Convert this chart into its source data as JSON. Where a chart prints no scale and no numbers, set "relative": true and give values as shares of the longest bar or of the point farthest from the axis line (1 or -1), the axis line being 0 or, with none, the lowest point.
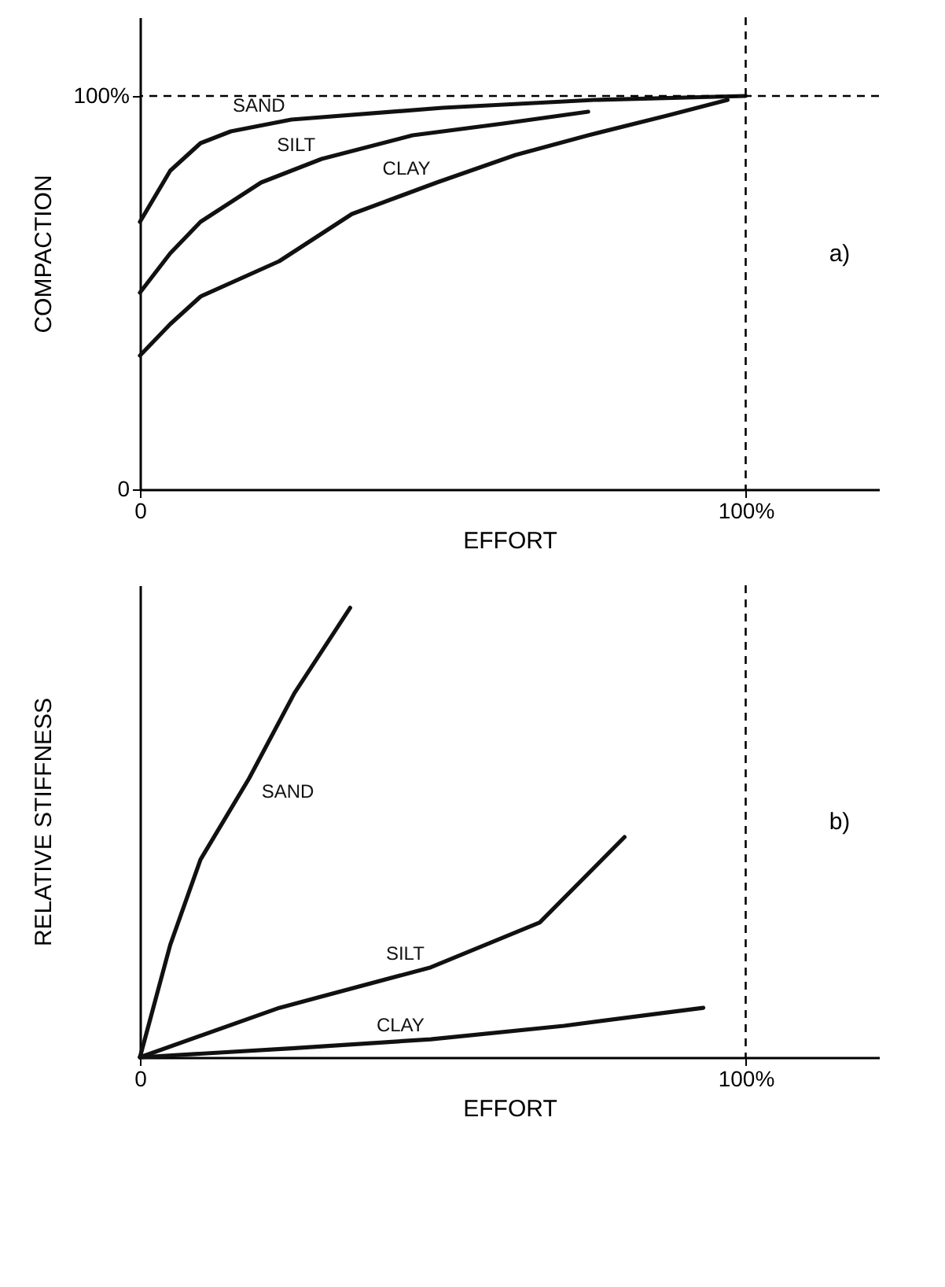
{
  "chart_data": [
    {
      "type": "line",
      "xlabel": "EFFORT",
      "ylabel": "COMPACTION",
      "xlim": [
        0,
        122
      ],
      "ylim": [
        0,
        120
      ],
      "xticks": [
        0,
        {
          "value": 100,
          "label": "100%"
        }
      ],
      "yticks": [
        0,
        {
          "value": 100,
          "label": "100%"
        }
      ],
      "grid": false,
      "legend": false,
      "marker": "none",
      "line_style": "solid",
      "series": [
        {
          "name": "SAND",
          "color": "#111111",
          "x": [
            0,
            5,
            10,
            15,
            25,
            50,
            75,
            100
          ],
          "values": [
            68,
            81,
            88,
            91,
            94,
            97,
            99,
            100
          ]
        },
        {
          "name": "SILT",
          "color": "#111111",
          "x": [
            0,
            5,
            10,
            20,
            30,
            45,
            60,
            74
          ],
          "values": [
            50,
            60,
            68,
            78,
            84,
            90,
            93,
            96
          ]
        },
        {
          "name": "CLAY",
          "color": "#111111",
          "x": [
            0,
            5,
            10,
            23,
            35,
            49,
            62,
            74,
            87,
            97
          ],
          "values": [
            34,
            42,
            49,
            58,
            70,
            78,
            85,
            90,
            95,
            99
          ]
        }
      ],
      "ref_lines": [
        {
          "axis": "y",
          "value": 100,
          "line_style": "dashed"
        },
        {
          "axis": "x",
          "value": 100,
          "line_style": "dashed"
        }
      ],
      "annotations": [
        "a)"
      ]
    },
    {
      "type": "line",
      "xlabel": "EFFORT",
      "ylabel": "RELATIVE STIFFNESS",
      "relative": true,
      "xlim": [
        0,
        122
      ],
      "xticks": [
        0,
        {
          "value": 100,
          "label": "100%"
        }
      ],
      "tick_labels": "x",
      "grid": false,
      "legend": false,
      "marker": "none",
      "line_style": "solid",
      "series": [
        {
          "name": "SAND",
          "color": "#111111",
          "x": [
            0,
            5,
            10,
            18,
            25.5,
            34.7
          ],
          "values": [
            0,
            0.25,
            0.44,
            0.62,
            0.81,
            1
          ]
        },
        {
          "name": "SILT",
          "color": "#111111",
          "x": [
            0,
            23,
            48,
            66,
            80
          ],
          "values": [
            0,
            0.11,
            0.2,
            0.3,
            0.49
          ]
        },
        {
          "name": "CLAY",
          "color": "#111111",
          "x": [
            0,
            25,
            48,
            70,
            93
          ],
          "values": [
            0,
            0.02,
            0.04,
            0.07,
            0.11
          ]
        }
      ],
      "ref_lines": [
        {
          "axis": "x",
          "value": 100,
          "line_style": "dashed"
        }
      ],
      "annotations": [
        "b)"
      ]
    }
  ]
}
